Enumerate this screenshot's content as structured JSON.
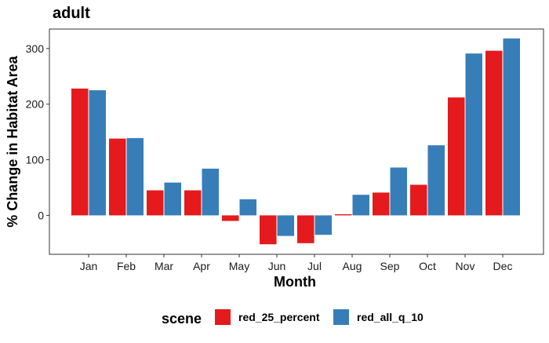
{
  "chart_data": {
    "type": "bar",
    "title": "adult",
    "xlabel": "Month",
    "ylabel": "% Change in Habitat Area",
    "categories": [
      "Jan",
      "Feb",
      "Mar",
      "Apr",
      "May",
      "Jun",
      "Jul",
      "Aug",
      "Sep",
      "Oct",
      "Nov",
      "Dec"
    ],
    "series": [
      {
        "name": "red_25_percent",
        "color": "#e41a1c",
        "values": [
          228,
          138,
          45,
          45,
          -10,
          -52,
          -50,
          2,
          41,
          55,
          212,
          296
        ]
      },
      {
        "name": "red_all_q_10",
        "color": "#377eb8",
        "values": [
          225,
          139,
          59,
          84,
          29,
          -37,
          -35,
          37,
          86,
          126,
          291,
          318
        ]
      }
    ],
    "ylim": [
      -70,
      335
    ],
    "yticks": [
      0,
      100,
      200,
      300
    ],
    "legend": {
      "title": "scene",
      "position": "bottom"
    },
    "grid": false
  }
}
